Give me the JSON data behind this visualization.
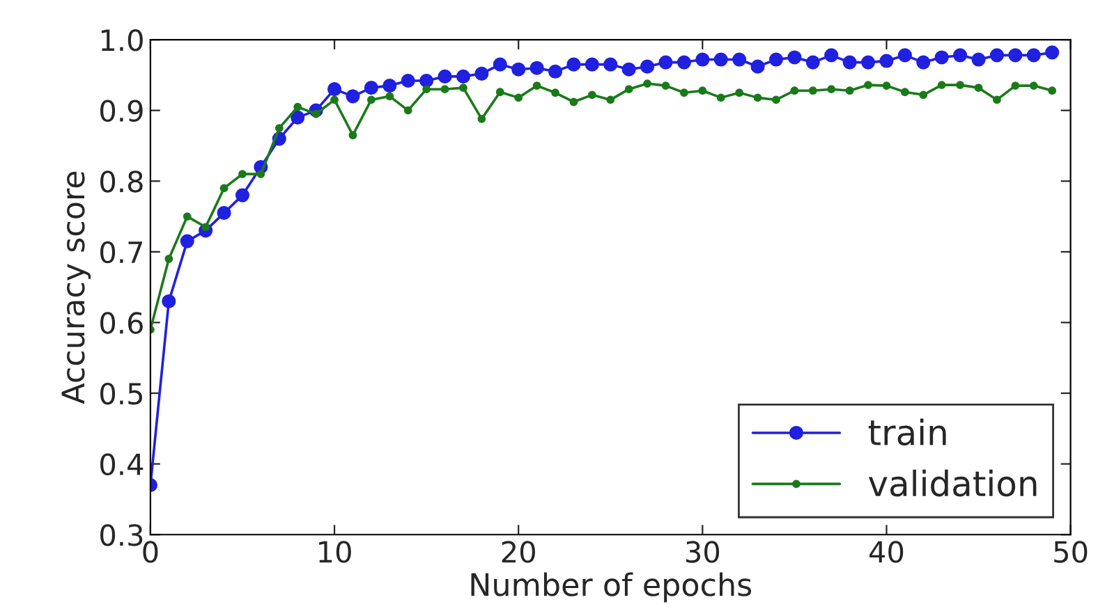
{
  "chart_data": {
    "type": "line",
    "xlabel": "Number of epochs",
    "ylabel": "Accuracy score",
    "x": [
      0,
      1,
      2,
      3,
      4,
      5,
      6,
      7,
      8,
      9,
      10,
      11,
      12,
      13,
      14,
      15,
      16,
      17,
      18,
      19,
      20,
      21,
      22,
      23,
      24,
      25,
      26,
      27,
      28,
      29,
      30,
      31,
      32,
      33,
      34,
      35,
      36,
      37,
      38,
      39,
      40,
      41,
      42,
      43,
      44,
      45,
      46,
      47,
      48,
      49
    ],
    "series": [
      {
        "name": "train",
        "color": "#2020e0",
        "values": [
          0.37,
          0.63,
          0.715,
          0.73,
          0.755,
          0.78,
          0.82,
          0.86,
          0.89,
          0.9,
          0.93,
          0.92,
          0.932,
          0.935,
          0.942,
          0.942,
          0.948,
          0.948,
          0.952,
          0.965,
          0.958,
          0.96,
          0.955,
          0.965,
          0.965,
          0.965,
          0.958,
          0.962,
          0.968,
          0.968,
          0.972,
          0.972,
          0.972,
          0.962,
          0.972,
          0.975,
          0.968,
          0.978,
          0.968,
          0.968,
          0.97,
          0.978,
          0.968,
          0.975,
          0.978,
          0.972,
          0.978,
          0.978,
          0.978,
          0.982
        ]
      },
      {
        "name": "validation",
        "color": "#1a7a1a",
        "values": [
          0.59,
          0.69,
          0.75,
          0.735,
          0.79,
          0.81,
          0.81,
          0.875,
          0.905,
          0.895,
          0.915,
          0.865,
          0.915,
          0.92,
          0.9,
          0.93,
          0.93,
          0.932,
          0.888,
          0.926,
          0.918,
          0.935,
          0.925,
          0.912,
          0.922,
          0.915,
          0.93,
          0.938,
          0.935,
          0.925,
          0.928,
          0.918,
          0.925,
          0.918,
          0.915,
          0.928,
          0.928,
          0.93,
          0.928,
          0.936,
          0.935,
          0.926,
          0.922,
          0.936,
          0.936,
          0.932,
          0.915,
          0.935,
          0.935,
          0.928
        ]
      }
    ],
    "xlim": [
      0,
      50
    ],
    "xticks": [
      0,
      10,
      20,
      30,
      40,
      50
    ],
    "ylim": [
      0.3,
      1.0
    ],
    "yticks": [
      {
        "value": 0.3,
        "label": "0.3"
      },
      {
        "value": 0.4,
        "label": "0.4"
      },
      {
        "value": 0.5,
        "label": "0.5"
      },
      {
        "value": 0.6,
        "label": "0.6"
      },
      {
        "value": 0.7,
        "label": "0.7"
      },
      {
        "value": 0.8,
        "label": "0.8"
      },
      {
        "value": 0.9,
        "label": "0.9"
      },
      {
        "value": 1.0,
        "label": "1.0"
      }
    ],
    "legend": "bottom right",
    "marker": "circle",
    "line_style": "solid",
    "grid": false
  }
}
